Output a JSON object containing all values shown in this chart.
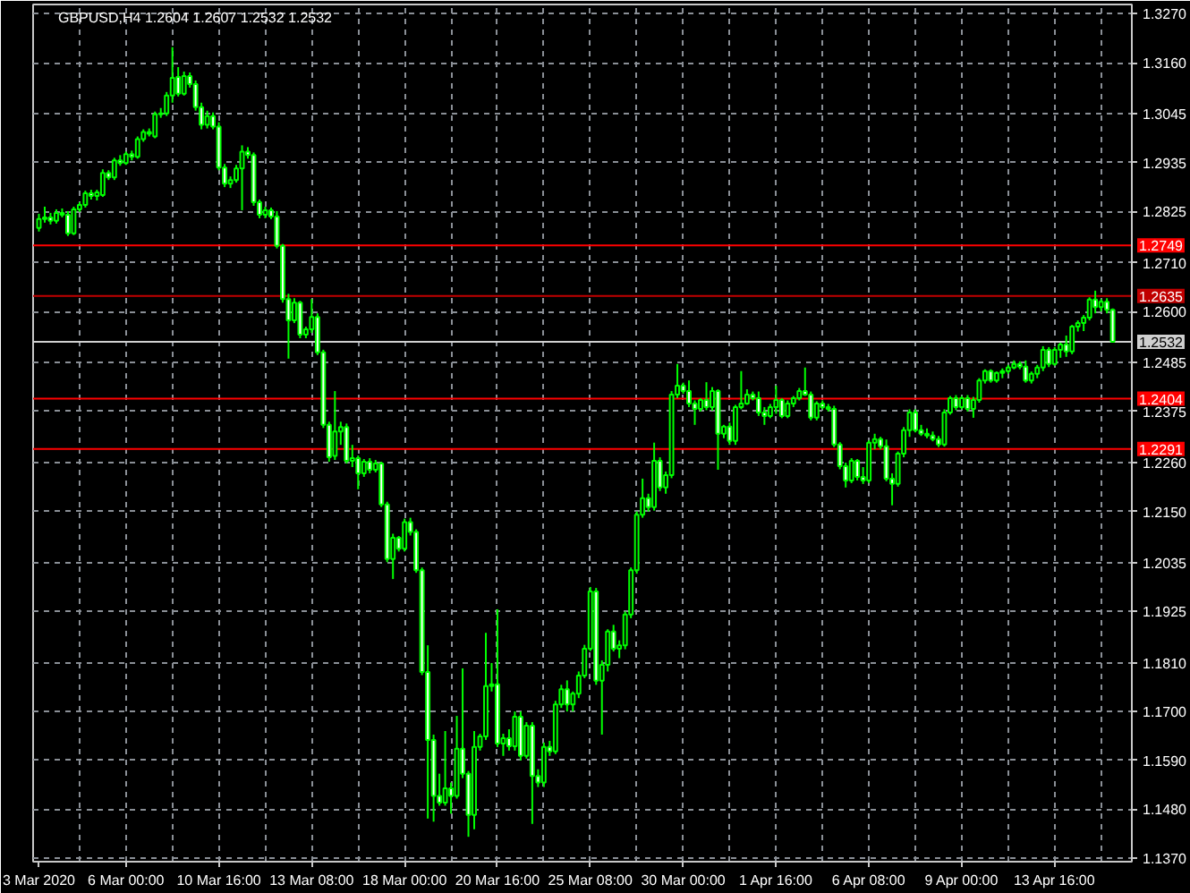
{
  "chart_data": {
    "type": "candlestick",
    "title": "GBPUSD,H4 1.2604 1.2607 1.2532 1.2532",
    "color": "#00ff00",
    "categories": [
      "3 Mar 2020",
      null,
      null,
      null,
      null,
      null,
      null,
      null,
      null,
      null,
      null,
      null,
      null,
      null,
      null,
      "6 Mar 00:00",
      null,
      null,
      null,
      null,
      null,
      null,
      null,
      null,
      null,
      null,
      null,
      null,
      null,
      null,
      null,
      "10 Mar 16:00",
      null,
      null,
      null,
      null,
      null,
      null,
      null,
      null,
      null,
      null,
      null,
      null,
      null,
      null,
      null,
      "13 Mar 08:00",
      null,
      null,
      null,
      null,
      null,
      null,
      null,
      null,
      null,
      null,
      null,
      null,
      null,
      null,
      null,
      "18 Mar 00:00",
      null,
      null,
      null,
      null,
      null,
      null,
      null,
      null,
      null,
      null,
      null,
      null,
      null,
      null,
      null,
      "20 Mar 16:00",
      null,
      null,
      null,
      null,
      null,
      null,
      null,
      null,
      null,
      null,
      null,
      null,
      null,
      null,
      null,
      "25 Mar 08:00",
      null,
      null,
      null,
      null,
      null,
      null,
      null,
      null,
      null,
      null,
      null,
      null,
      null,
      null,
      null,
      "30 Mar 00:00",
      null,
      null,
      null,
      null,
      null,
      null,
      null,
      null,
      null,
      null,
      null,
      null,
      null,
      null,
      null,
      "1 Apr 16:00",
      null,
      null,
      null,
      null,
      null,
      null,
      null,
      null,
      null,
      null,
      null,
      null,
      null,
      null,
      null,
      "6 Apr 08:00",
      null,
      null,
      null,
      null,
      null,
      null,
      null,
      null,
      null,
      null,
      null,
      null,
      null,
      null,
      null,
      "9 Apr 00:00",
      null,
      null,
      null,
      null,
      null,
      null,
      null,
      null,
      null,
      null,
      null,
      null,
      null,
      null,
      null,
      "13 Apr 16:00",
      null,
      null,
      null,
      null,
      null,
      null,
      null,
      null,
      null,
      null
    ],
    "ohlc": [
      [
        1.2788,
        1.282,
        1.278,
        1.2808
      ],
      [
        1.2808,
        1.2836,
        1.28,
        1.2812
      ],
      [
        1.2812,
        1.2822,
        1.2796,
        1.2804
      ],
      [
        1.2804,
        1.283,
        1.2798,
        1.2822
      ],
      [
        1.2822,
        1.2832,
        1.2812,
        1.2818
      ],
      [
        1.2818,
        1.2826,
        1.277,
        1.2776
      ],
      [
        1.2776,
        1.2836,
        1.2772,
        1.283
      ],
      [
        1.283,
        1.2846,
        1.2824,
        1.284
      ],
      [
        1.284,
        1.2872,
        1.2834,
        1.2866
      ],
      [
        1.2866,
        1.2874,
        1.2852,
        1.286
      ],
      [
        1.286,
        1.2874,
        1.285,
        1.2868
      ],
      [
        1.2862,
        1.292,
        1.2858,
        1.2912
      ],
      [
        1.2912,
        1.2918,
        1.2896,
        1.2902
      ],
      [
        1.2902,
        1.2946,
        1.2896,
        1.294
      ],
      [
        1.294,
        1.2952,
        1.2928,
        1.2934
      ],
      [
        1.2934,
        1.296,
        1.293,
        1.2954
      ],
      [
        1.2954,
        1.2962,
        1.294,
        1.2948
      ],
      [
        1.2948,
        1.2994,
        1.2944,
        1.2988
      ],
      [
        1.2988,
        1.301,
        1.2982,
        1.3004
      ],
      [
        1.3004,
        1.3012,
        1.2994,
        1.3
      ],
      [
        1.2994,
        1.305,
        1.299,
        1.3044
      ],
      [
        1.3044,
        1.3058,
        1.3036,
        1.3046
      ],
      [
        1.3046,
        1.3094,
        1.304,
        1.3086
      ],
      [
        1.3086,
        1.3195,
        1.307,
        1.3126
      ],
      [
        1.3128,
        1.315,
        1.3084,
        1.309
      ],
      [
        1.309,
        1.314,
        1.3086,
        1.313
      ],
      [
        1.313,
        1.3138,
        1.3104,
        1.3112
      ],
      [
        1.3112,
        1.312,
        1.3052,
        1.306
      ],
      [
        1.306,
        1.307,
        1.301,
        1.302
      ],
      [
        1.302,
        1.3052,
        1.3012,
        1.304
      ],
      [
        1.304,
        1.3048,
        1.301,
        1.3016
      ],
      [
        1.3016,
        1.3026,
        1.2918,
        1.2924
      ],
      [
        1.2924,
        1.2932,
        1.288,
        1.2888
      ],
      [
        1.2888,
        1.2904,
        1.2878,
        1.2896
      ],
      [
        1.2896,
        1.293,
        1.289,
        1.2922
      ],
      [
        1.2922,
        1.2974,
        1.2828,
        1.296
      ],
      [
        1.296,
        1.297,
        1.2944,
        1.2952
      ],
      [
        1.2952,
        1.2958,
        1.2838,
        1.2846
      ],
      [
        1.2846,
        1.2852,
        1.281,
        1.2818
      ],
      [
        1.2818,
        1.2836,
        1.281,
        1.2828
      ],
      [
        1.2828,
        1.2834,
        1.2808,
        1.2814
      ],
      [
        1.2814,
        1.2826,
        1.2742,
        1.2748
      ],
      [
        1.2748,
        1.2752,
        1.262,
        1.2628
      ],
      [
        1.2628,
        1.264,
        1.2494,
        1.258
      ],
      [
        1.258,
        1.263,
        1.2574,
        1.262
      ],
      [
        1.262,
        1.2624,
        1.254,
        1.2548
      ],
      [
        1.2548,
        1.2566,
        1.254,
        1.256
      ],
      [
        1.256,
        1.2628,
        1.2552,
        1.2588
      ],
      [
        1.2588,
        1.2596,
        1.2502,
        1.2508
      ],
      [
        1.2508,
        1.2514,
        1.2338,
        1.2345
      ],
      [
        1.2345,
        1.2352,
        1.2262,
        1.2272
      ],
      [
        1.2275,
        1.2421,
        1.2266,
        1.233
      ],
      [
        1.233,
        1.2352,
        1.23,
        1.234
      ],
      [
        1.234,
        1.2348,
        1.2258,
        1.2264
      ],
      [
        1.2264,
        1.23,
        1.225,
        1.227
      ],
      [
        1.227,
        1.2276,
        1.22,
        1.2236
      ],
      [
        1.2236,
        1.2268,
        1.2228,
        1.2262
      ],
      [
        1.2262,
        1.227,
        1.2236,
        1.2244
      ],
      [
        1.2244,
        1.2266,
        1.2238,
        1.2258
      ],
      [
        1.2258,
        1.2262,
        1.216,
        1.2166
      ],
      [
        1.2166,
        1.2172,
        1.2036,
        1.2043
      ],
      [
        1.2043,
        1.21,
        1.1998,
        1.2091
      ],
      [
        1.2091,
        1.2095,
        1.206,
        1.2066
      ],
      [
        1.2066,
        1.2134,
        1.206,
        1.2126
      ],
      [
        1.2126,
        1.2136,
        1.2096,
        1.2104
      ],
      [
        1.2104,
        1.211,
        1.2012,
        1.2018
      ],
      [
        1.2018,
        1.2024,
        1.1782,
        1.1789
      ],
      [
        1.1789,
        1.1849,
        1.1459,
        1.1636
      ],
      [
        1.1636,
        1.1648,
        1.1452,
        1.151
      ],
      [
        1.151,
        1.156,
        1.1488,
        1.1495
      ],
      [
        1.1495,
        1.1656,
        1.1488,
        1.1527
      ],
      [
        1.1527,
        1.154,
        1.147,
        1.151
      ],
      [
        1.151,
        1.169,
        1.1504,
        1.1616
      ],
      [
        1.1616,
        1.1797,
        1.155,
        1.156
      ],
      [
        1.156,
        1.1566,
        1.1418,
        1.1467
      ],
      [
        1.1467,
        1.1656,
        1.1435,
        1.162
      ],
      [
        1.162,
        1.165,
        1.1612,
        1.1644
      ],
      [
        1.1644,
        1.1877,
        1.1636,
        1.1757
      ],
      [
        1.1757,
        1.1809,
        1.1745,
        1.1761
      ],
      [
        1.1761,
        1.193,
        1.162,
        1.1628
      ],
      [
        1.1628,
        1.165,
        1.16,
        1.164
      ],
      [
        1.164,
        1.166,
        1.1612,
        1.1622
      ],
      [
        1.1622,
        1.17,
        1.1612,
        1.1688
      ],
      [
        1.1688,
        1.17,
        1.159,
        1.16
      ],
      [
        1.16,
        1.1676,
        1.1594,
        1.1668
      ],
      [
        1.1668,
        1.1676,
        1.1447,
        1.1555
      ],
      [
        1.1555,
        1.157,
        1.153,
        1.154
      ],
      [
        1.154,
        1.163,
        1.153,
        1.162
      ],
      [
        1.162,
        1.1634,
        1.16,
        1.161
      ],
      [
        1.161,
        1.1724,
        1.1604,
        1.1716
      ],
      [
        1.1716,
        1.176,
        1.1708,
        1.175
      ],
      [
        1.175,
        1.177,
        1.17,
        1.1716
      ],
      [
        1.1716,
        1.1745,
        1.17,
        1.174
      ],
      [
        1.174,
        1.179,
        1.173,
        1.1781
      ],
      [
        1.1781,
        1.185,
        1.1775,
        1.1841
      ],
      [
        1.1841,
        1.198,
        1.1836,
        1.197
      ],
      [
        1.197,
        1.1978,
        1.176,
        1.1769
      ],
      [
        1.1769,
        1.1815,
        1.1648,
        1.1805
      ],
      [
        1.1805,
        1.1885,
        1.179,
        1.188
      ],
      [
        1.188,
        1.1895,
        1.1835,
        1.1841
      ],
      [
        1.1841,
        1.186,
        1.182,
        1.1849
      ],
      [
        1.1849,
        1.1925,
        1.184,
        1.1918
      ],
      [
        1.1918,
        1.2024,
        1.191,
        1.2018
      ],
      [
        1.2018,
        1.215,
        1.201,
        1.2143
      ],
      [
        1.2143,
        1.2224,
        1.2136,
        1.218
      ],
      [
        1.218,
        1.219,
        1.215,
        1.216
      ],
      [
        1.216,
        1.2305,
        1.2152,
        1.2264
      ],
      [
        1.2264,
        1.2272,
        1.2196,
        1.2204
      ],
      [
        1.2204,
        1.224,
        1.219,
        1.2232
      ],
      [
        1.2232,
        1.2421,
        1.2225,
        1.2413
      ],
      [
        1.2413,
        1.2482,
        1.2405,
        1.2433
      ],
      [
        1.2433,
        1.244,
        1.2415,
        1.2421
      ],
      [
        1.2421,
        1.2445,
        1.2385,
        1.2393
      ],
      [
        1.2393,
        1.24,
        1.2345,
        1.2381
      ],
      [
        1.2381,
        1.2405,
        1.2375,
        1.2401
      ],
      [
        1.2401,
        1.2441,
        1.2378,
        1.2385
      ],
      [
        1.2385,
        1.243,
        1.2377,
        1.2421
      ],
      [
        1.2421,
        1.2425,
        1.2244,
        1.2325
      ],
      [
        1.2325,
        1.2345,
        1.2315,
        1.2341
      ],
      [
        1.2341,
        1.235,
        1.23,
        1.2309
      ],
      [
        1.2309,
        1.239,
        1.23,
        1.2385
      ],
      [
        1.2385,
        1.2466,
        1.238,
        1.2393
      ],
      [
        1.2393,
        1.2425,
        1.239,
        1.2413
      ],
      [
        1.2413,
        1.242,
        1.24,
        1.2405
      ],
      [
        1.2405,
        1.242,
        1.2365,
        1.2373
      ],
      [
        1.2373,
        1.2385,
        1.2345,
        1.2365
      ],
      [
        1.2365,
        1.2392,
        1.236,
        1.2385
      ],
      [
        1.2385,
        1.2433,
        1.237,
        1.2401
      ],
      [
        1.2401,
        1.2405,
        1.236,
        1.2365
      ],
      [
        1.2365,
        1.24,
        1.236,
        1.2393
      ],
      [
        1.2393,
        1.241,
        1.2385,
        1.2405
      ],
      [
        1.2405,
        1.2428,
        1.24,
        1.2421
      ],
      [
        1.2421,
        1.2474,
        1.241,
        1.2413
      ],
      [
        1.2413,
        1.242,
        1.2355,
        1.2361
      ],
      [
        1.2361,
        1.2398,
        1.2355,
        1.2393
      ],
      [
        1.2393,
        1.24,
        1.238,
        1.2385
      ],
      [
        1.2385,
        1.2392,
        1.2375,
        1.2381
      ],
      [
        1.2381,
        1.2388,
        1.2295,
        1.2301
      ],
      [
        1.2301,
        1.2306,
        1.2245,
        1.2252
      ],
      [
        1.2252,
        1.226,
        1.2204,
        1.222
      ],
      [
        1.222,
        1.227,
        1.2214,
        1.2264
      ],
      [
        1.2264,
        1.2268,
        1.222,
        1.2228
      ],
      [
        1.2228,
        1.225,
        1.2212,
        1.222
      ],
      [
        1.222,
        1.231,
        1.2214,
        1.2305
      ],
      [
        1.2305,
        1.2325,
        1.229,
        1.2313
      ],
      [
        1.2313,
        1.2318,
        1.229,
        1.2297
      ],
      [
        1.2297,
        1.2312,
        1.2218,
        1.2224
      ],
      [
        1.2224,
        1.2236,
        1.2164,
        1.2212
      ],
      [
        1.2212,
        1.2285,
        1.2206,
        1.228
      ],
      [
        1.228,
        1.234,
        1.2272,
        1.2333
      ],
      [
        1.2333,
        1.238,
        1.2318,
        1.2373
      ],
      [
        1.2373,
        1.238,
        1.2328,
        1.2333
      ],
      [
        1.2333,
        1.2345,
        1.232,
        1.2325
      ],
      [
        1.2325,
        1.2337,
        1.2315,
        1.2321
      ],
      [
        1.2321,
        1.233,
        1.2308,
        1.2313
      ],
      [
        1.2313,
        1.232,
        1.2295,
        1.2301
      ],
      [
        1.2301,
        1.238,
        1.2296,
        1.2373
      ],
      [
        1.2373,
        1.241,
        1.2368,
        1.2405
      ],
      [
        1.2405,
        1.2412,
        1.2378,
        1.2385
      ],
      [
        1.2385,
        1.241,
        1.238,
        1.2405
      ],
      [
        1.2405,
        1.2412,
        1.2375,
        1.2381
      ],
      [
        1.2381,
        1.2408,
        1.2361,
        1.2401
      ],
      [
        1.2401,
        1.245,
        1.2395,
        1.2445
      ],
      [
        1.2445,
        1.247,
        1.2438,
        1.2466
      ],
      [
        1.2466,
        1.247,
        1.244,
        1.2445
      ],
      [
        1.2445,
        1.2465,
        1.244,
        1.2462
      ],
      [
        1.2462,
        1.2472,
        1.245,
        1.2466
      ],
      [
        1.2466,
        1.248,
        1.246,
        1.2474
      ],
      [
        1.2474,
        1.249,
        1.247,
        1.2482
      ],
      [
        1.2482,
        1.2488,
        1.247,
        1.2476
      ],
      [
        1.2476,
        1.249,
        1.244,
        1.2445
      ],
      [
        1.2445,
        1.2465,
        1.2438,
        1.246
      ],
      [
        1.246,
        1.248,
        1.245,
        1.2474
      ],
      [
        1.2474,
        1.2522,
        1.2466,
        1.2514
      ],
      [
        1.2514,
        1.252,
        1.2475,
        1.2482
      ],
      [
        1.2482,
        1.252,
        1.2478,
        1.2514
      ],
      [
        1.2514,
        1.253,
        1.2496,
        1.2526
      ],
      [
        1.2526,
        1.2546,
        1.2498,
        1.251
      ],
      [
        1.251,
        1.257,
        1.2504,
        1.2566
      ],
      [
        1.2566,
        1.258,
        1.2555,
        1.2574
      ],
      [
        1.2574,
        1.2592,
        1.2556,
        1.2586
      ],
      [
        1.2586,
        1.2632,
        1.258,
        1.2627
      ],
      [
        1.2627,
        1.2647,
        1.2596,
        1.261
      ],
      [
        1.261,
        1.2628,
        1.26,
        1.2622
      ],
      [
        1.2622,
        1.263,
        1.2596,
        1.2604
      ],
      [
        1.2604,
        1.2607,
        1.2532,
        1.2532
      ]
    ],
    "ylim": [
      1.1362,
      1.3291
    ],
    "yticks": [
      {
        "value": 1.327,
        "label": "1.3270"
      },
      {
        "value": 1.316,
        "label": "1.3160"
      },
      1.3045,
      1.2935,
      1.2825,
      {
        "value": 1.271,
        "label": "1.2710"
      },
      {
        "value": 1.26,
        "label": "1.2600"
      },
      1.2485,
      1.2375,
      {
        "value": 1.226,
        "label": "1.2260"
      },
      {
        "value": 1.215,
        "label": "1.2150"
      },
      1.2035,
      1.1925,
      {
        "value": 1.181,
        "label": "1.1810"
      },
      {
        "value": 1.17,
        "label": "1.1700"
      },
      {
        "value": 1.159,
        "label": "1.1590"
      },
      {
        "value": 1.148,
        "label": "1.1480"
      },
      {
        "value": 1.137,
        "label": "1.1370"
      }
    ],
    "grid": true,
    "ref_lines": [
      {
        "axis": "y",
        "value": 1.2749,
        "label": "1.2749",
        "color": "#ff0000"
      },
      {
        "axis": "y",
        "value": 1.2635,
        "label": "1.2635",
        "color": "#c00000"
      },
      {
        "axis": "y",
        "value": 1.2532,
        "label": "1.2532",
        "color": "#d0d0d0"
      },
      {
        "axis": "y",
        "value": 1.2404,
        "label": "1.2404",
        "color": "#ff0000"
      },
      {
        "axis": "y",
        "value": 1.2291,
        "label": "1.2291",
        "color": "#ff0000"
      }
    ]
  }
}
